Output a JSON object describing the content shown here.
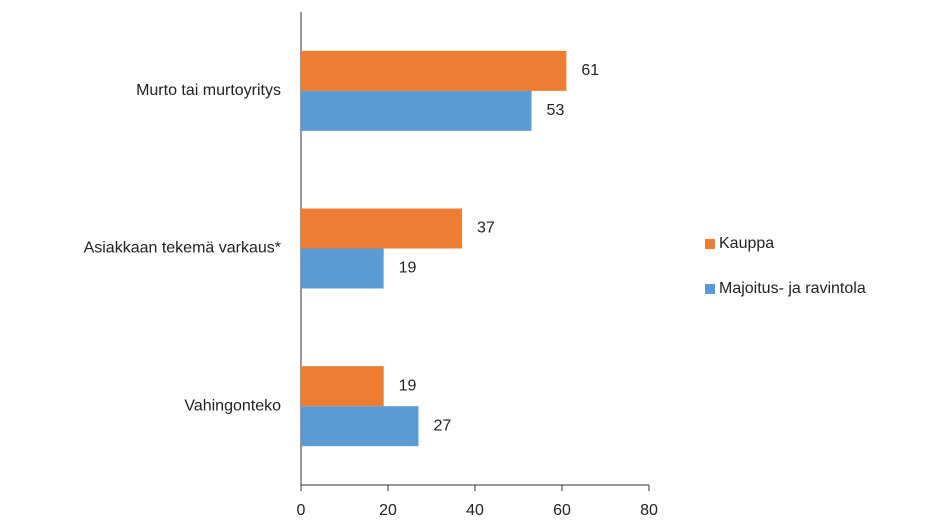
{
  "chart_data": {
    "type": "bar",
    "orientation": "horizontal",
    "categories": [
      "Murto tai murtoyritys",
      "Asiakkaan tekemä varkaus*",
      "Vahingonteko"
    ],
    "series": [
      {
        "name": "Kauppa",
        "color": "#ED7D31",
        "values": [
          61,
          37,
          19
        ]
      },
      {
        "name": "Majoitus- ja ravintola",
        "color": "#5B9BD5",
        "values": [
          53,
          19,
          27
        ]
      }
    ],
    "xlim": [
      0,
      80
    ],
    "xticks": [
      0,
      20,
      40,
      60,
      80
    ],
    "legend": "right"
  }
}
